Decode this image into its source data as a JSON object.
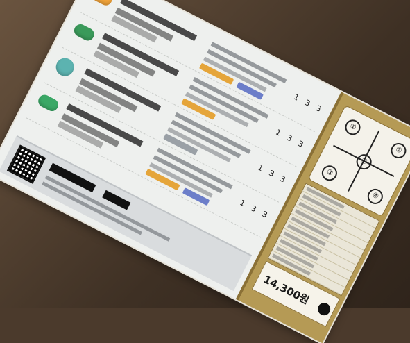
{
  "document": {
    "medications": [
      {
        "pill_color": "#f0a33a",
        "shape": "capsule",
        "doses": [
          "1",
          "3",
          "3"
        ]
      },
      {
        "pill_color": "#3a9a5a",
        "shape": "capsule",
        "doses": [
          "1",
          "3",
          "3"
        ]
      },
      {
        "pill_color": "#5cb3b0",
        "shape": "round",
        "doses": [
          "1",
          "3",
          "3"
        ]
      },
      {
        "pill_color": "#3aa866",
        "shape": "capsule",
        "doses": [
          "1",
          "3",
          "3"
        ]
      }
    ],
    "footer": {
      "qr_icon": "qr-code-icon"
    },
    "side_panel": {
      "dial_numbers": [
        "①",
        "②",
        "③",
        "④",
        "⑤"
      ],
      "price": "14,300원"
    },
    "colors": {
      "sheet": "#eef0ee",
      "panel": "#b59a55",
      "accent_orange": "#e5a53a"
    }
  }
}
